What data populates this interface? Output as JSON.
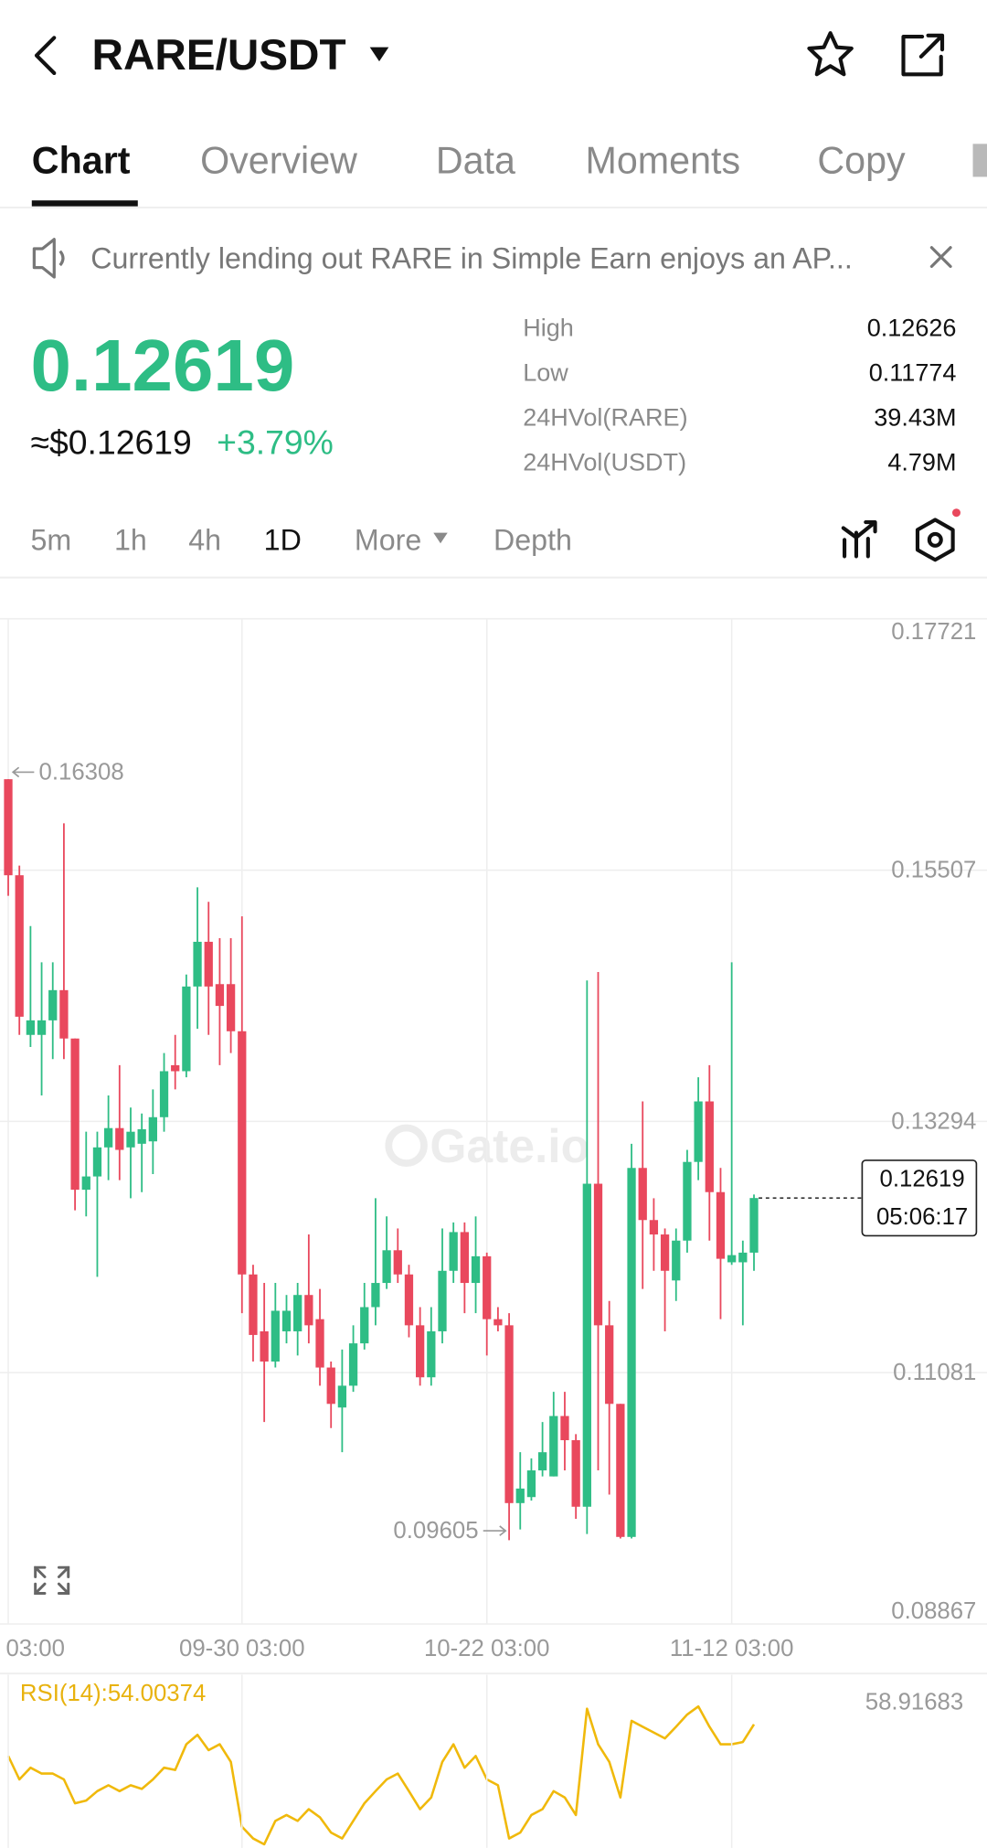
{
  "header": {
    "pair": "RARE/USDT"
  },
  "tabs": [
    "Chart",
    "Overview",
    "Data",
    "Moments",
    "Copy"
  ],
  "notice": "Currently lending out RARE in Simple Earn enjoys an AP...",
  "ticker": {
    "price": "0.12619",
    "approx": "≈$0.12619",
    "change": "+3.79%",
    "stats": [
      {
        "label": "High",
        "value": "0.12626"
      },
      {
        "label": "Low",
        "value": "0.11774"
      },
      {
        "label": "24HVol(RARE)",
        "value": "39.43M"
      },
      {
        "label": "24HVol(USDT)",
        "value": "4.79M"
      }
    ]
  },
  "intervals": [
    "5m",
    "1h",
    "4h",
    "1D",
    "More",
    "Depth"
  ],
  "chart_data": [
    {
      "type": "candlestick",
      "watermark": "Gate.io",
      "countdown": "05:06:17",
      "up_color": "#2ebd85",
      "down_color": "#e9485d",
      "grid": true,
      "categories": [
        "03:00",
        null,
        null,
        null,
        null,
        null,
        null,
        null,
        null,
        null,
        null,
        null,
        null,
        null,
        null,
        null,
        null,
        null,
        null,
        null,
        null,
        "09-30 03:00",
        null,
        null,
        null,
        null,
        null,
        null,
        null,
        null,
        null,
        null,
        null,
        null,
        null,
        null,
        null,
        null,
        null,
        null,
        null,
        null,
        null,
        "10-22 03:00",
        null,
        null,
        null,
        null,
        null,
        null,
        null,
        null,
        null,
        null,
        null,
        null,
        null,
        null,
        null,
        null,
        null,
        null,
        null,
        null,
        null,
        "11-12 03:00",
        null,
        null
      ],
      "open": [
        0.16308,
        0.15462,
        0.14056,
        0.14056,
        0.14184,
        0.1445,
        0.14024,
        0.12692,
        0.12809,
        0.13065,
        0.13235,
        0.13065,
        0.13097,
        0.13118,
        0.13331,
        0.13789,
        0.13736,
        0.14482,
        0.14876,
        0.14503,
        0.14503,
        0.14088,
        0.11946,
        0.11445,
        0.11179,
        0.11445,
        0.11445,
        0.11765,
        0.11552,
        0.11126,
        0.10774,
        0.10966,
        0.11339,
        0.11658,
        0.11871,
        0.12159,
        0.11946,
        0.11498,
        0.1104,
        0.11445,
        0.11978,
        0.12319,
        0.11871,
        0.12106,
        0.11552,
        0.11498,
        0.09932,
        0.09985,
        0.1022,
        0.10167,
        0.10699,
        0.10486,
        0.099,
        0.12745,
        0.11498,
        0.10806,
        0.09634,
        0.12884,
        0.12425,
        0.12298,
        0.11893,
        0.12244,
        0.12937,
        0.1347,
        0.12671,
        0.12053,
        0.12053,
        0.12138
      ],
      "high": [
        0.16308,
        0.15547,
        0.15015,
        0.14695,
        0.14695,
        0.1592,
        0.14024,
        0.13203,
        0.13203,
        0.13523,
        0.13789,
        0.13416,
        0.13363,
        0.13576,
        0.13896,
        0.14056,
        0.14588,
        0.15356,
        0.15228,
        0.14908,
        0.14908,
        0.151,
        0.12031,
        0.11871,
        0.11871,
        0.11765,
        0.11871,
        0.12298,
        0.11818,
        0.11179,
        0.11285,
        0.11498,
        0.11871,
        0.12617,
        0.12457,
        0.12351,
        0.12031,
        0.11658,
        0.11658,
        0.12351,
        0.12404,
        0.12404,
        0.12457,
        0.12138,
        0.11658,
        0.11605,
        0.1038,
        0.10326,
        0.10646,
        0.10912,
        0.10912,
        0.1054,
        0.14535,
        0.1461,
        0.11712,
        0.10806,
        0.13097,
        0.1347,
        0.12617,
        0.12351,
        0.12351,
        0.13043,
        0.13683,
        0.13789,
        0.12884,
        0.14695,
        0.12244,
        0.1265
      ],
      "low": [
        0.15281,
        0.14056,
        0.13949,
        0.13523,
        0.13843,
        0.13843,
        0.12511,
        0.12457,
        0.11925,
        0.12777,
        0.12777,
        0.12617,
        0.12671,
        0.1283,
        0.13203,
        0.13576,
        0.13683,
        0.14109,
        0.14056,
        0.13789,
        0.13896,
        0.11605,
        0.11179,
        0.10646,
        0.11126,
        0.11339,
        0.11232,
        0.11339,
        0.10966,
        0.10593,
        0.1038,
        0.10912,
        0.11285,
        0.11498,
        0.11818,
        0.11871,
        0.11392,
        0.10966,
        0.10966,
        0.11339,
        0.11871,
        0.11605,
        0.11605,
        0.11232,
        0.11445,
        0.09605,
        0.097,
        0.09954,
        0.10167,
        0.10167,
        0.1022,
        0.09794,
        0.0966,
        0.1022,
        0.10007,
        0.0962,
        0.0962,
        0.11818,
        0.11978,
        0.11445,
        0.11712,
        0.12138,
        0.12777,
        0.12244,
        0.11552,
        0.12031,
        0.11498,
        0.11978
      ],
      "close": [
        0.15462,
        0.14216,
        0.14184,
        0.14184,
        0.1445,
        0.14024,
        0.12692,
        0.12809,
        0.13065,
        0.13235,
        0.13043,
        0.13203,
        0.13225,
        0.13331,
        0.13736,
        0.13736,
        0.14482,
        0.14876,
        0.14482,
        0.14311,
        0.14088,
        0.11946,
        0.11413,
        0.11179,
        0.11626,
        0.11626,
        0.11765,
        0.11498,
        0.11126,
        0.10806,
        0.10966,
        0.11339,
        0.11658,
        0.11871,
        0.12159,
        0.11946,
        0.11498,
        0.1104,
        0.11445,
        0.11978,
        0.12319,
        0.11871,
        0.12106,
        0.11552,
        0.11498,
        0.09932,
        0.1006,
        0.1022,
        0.1038,
        0.10699,
        0.10486,
        0.099,
        0.12745,
        0.11498,
        0.10806,
        0.09634,
        0.12884,
        0.12425,
        0.12298,
        0.11978,
        0.12244,
        0.12937,
        0.1347,
        0.12671,
        0.12084,
        0.12116,
        0.12138,
        0.12619
      ],
      "ylim": [
        0.08867,
        0.17721
      ],
      "yticks": [
        0.17721,
        0.15507,
        0.13294,
        0.11081,
        0.08867
      ]
    },
    {
      "type": "line",
      "title": "RSI(14):54.00374",
      "color": "#f0b90b",
      "values": [
        47.0,
        41.8,
        44.4,
        43.1,
        43.1,
        41.8,
        36.5,
        37.1,
        39.2,
        40.5,
        39.2,
        40.5,
        39.7,
        41.8,
        44.4,
        43.9,
        49.6,
        51.7,
        48.3,
        49.6,
        45.7,
        31.3,
        28.7,
        27.4,
        32.6,
        33.9,
        32.6,
        35.2,
        33.4,
        30.0,
        28.7,
        32.6,
        36.5,
        39.2,
        41.8,
        43.1,
        39.2,
        35.2,
        37.8,
        45.7,
        49.6,
        44.4,
        47.0,
        41.8,
        40.5,
        28.7,
        30.0,
        33.9,
        35.2,
        39.2,
        37.8,
        33.9,
        57.5,
        49.6,
        45.7,
        37.8,
        54.8,
        53.5,
        52.2,
        50.9,
        53.5,
        56.2,
        58.0,
        53.5,
        49.6,
        49.6,
        50.1,
        54.00374
      ],
      "ylim": [
        30,
        64
      ],
      "yticks": [
        58.91683
      ]
    }
  ]
}
